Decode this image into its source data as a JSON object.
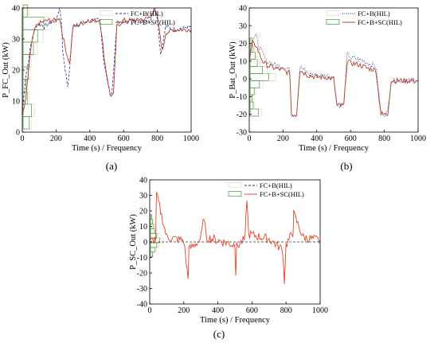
{
  "colors": {
    "fcb": "#1f2f9a",
    "sc": "#b5402a",
    "sc_c": "#e8442a",
    "hist_fill": "#c8e6c0",
    "hist_edge": "#3f9a3a",
    "hist_tan": "#e8d6b8",
    "axis": "#000000"
  },
  "chart_data": [
    {
      "type": "line",
      "panel_label": "(a)",
      "xlabel": "Time (s) / Frequency",
      "ylabel": "P_FC_Out (kW)",
      "xlim": [
        0,
        1000
      ],
      "ylim": [
        0,
        40
      ],
      "xticks": [
        0,
        200,
        400,
        600,
        800,
        1000
      ],
      "yticks": [
        0,
        10,
        20,
        30,
        40
      ],
      "legend": [
        "FC+B(HIL)",
        "FC+B+SC(HIL)"
      ],
      "legend_position": "top-right",
      "series": [
        {
          "name": "FC+B(HIL)",
          "style": "dashed",
          "x": [
            0,
            20,
            40,
            50,
            60,
            80,
            100,
            130,
            160,
            200,
            220,
            230,
            240,
            260,
            270,
            300,
            400,
            460,
            480,
            520,
            530,
            560,
            650,
            760,
            780,
            800,
            820,
            850,
            900,
            1000
          ],
          "y": [
            6,
            18,
            24,
            28,
            30,
            34,
            35,
            34,
            35,
            36,
            40,
            37,
            26,
            18,
            14,
            34,
            36,
            36,
            24,
            12,
            12,
            35,
            36,
            36,
            40,
            37,
            25,
            34,
            33,
            34
          ]
        },
        {
          "name": "FC+B+SC(HIL)",
          "style": "solid",
          "x": [
            0,
            20,
            40,
            60,
            80,
            100,
            150,
            200,
            220,
            240,
            260,
            280,
            300,
            400,
            460,
            490,
            520,
            540,
            560,
            600,
            700,
            760,
            780,
            800,
            830,
            850,
            900,
            1000
          ],
          "y": [
            5,
            10,
            22,
            30,
            34,
            35,
            36,
            36,
            37,
            31,
            26,
            22,
            34,
            36,
            36,
            22,
            12,
            12,
            34,
            36,
            36,
            37,
            40,
            37,
            26,
            32,
            33,
            33
          ]
        }
      ],
      "histogram": {
        "bins": [
          3,
          7,
          11,
          15,
          19,
          23,
          27,
          31,
          35,
          39
        ],
        "lengths": [
          6,
          8,
          4,
          3,
          5,
          6,
          10,
          14,
          20,
          4
        ]
      }
    },
    {
      "type": "line",
      "panel_label": "(b)",
      "xlabel": "Time (s) / Frequency",
      "ylabel": "P_Bat_Out (kW)",
      "xlim": [
        0,
        1000
      ],
      "ylim": [
        -30,
        40
      ],
      "xticks": [
        0,
        200,
        400,
        600,
        800,
        1000
      ],
      "yticks": [
        -30,
        -20,
        -10,
        0,
        10,
        20,
        30,
        40
      ],
      "legend": [
        "FC+B(HIL)",
        "FC+B+SC(HIL)"
      ],
      "legend_position": "top-right",
      "series": [
        {
          "name": "FC+B(HIL)",
          "style": "dotted",
          "x": [
            0,
            20,
            40,
            60,
            80,
            100,
            150,
            200,
            240,
            250,
            280,
            300,
            350,
            400,
            450,
            500,
            520,
            560,
            580,
            600,
            650,
            700,
            750,
            780,
            800,
            820,
            840,
            900,
            1000
          ],
          "y": [
            10,
            22,
            24,
            18,
            14,
            10,
            8,
            7,
            5,
            -20,
            -20,
            7,
            3,
            2,
            2,
            1,
            -15,
            -15,
            14,
            12,
            11,
            9,
            7,
            -19,
            -20,
            -19,
            -1,
            -1,
            -1
          ]
        },
        {
          "name": "FC+B+SC(HIL)",
          "style": "solid",
          "x": [
            0,
            20,
            40,
            60,
            80,
            100,
            150,
            200,
            240,
            250,
            280,
            300,
            350,
            400,
            450,
            500,
            520,
            560,
            580,
            600,
            650,
            700,
            750,
            780,
            800,
            820,
            840,
            900,
            1000
          ],
          "y": [
            12,
            20,
            19,
            14,
            10,
            8,
            6,
            5,
            3,
            -20,
            -20,
            5,
            2,
            1,
            1,
            0,
            -15,
            -15,
            10,
            9,
            8,
            6,
            5,
            -20,
            -20,
            -20,
            -1,
            -1,
            -1
          ]
        }
      ],
      "histogram": {
        "bins": [
          -19,
          -15,
          -11,
          -7,
          -3,
          1,
          5,
          9,
          13,
          17,
          21
        ],
        "lengths": [
          8,
          3,
          2,
          4,
          9,
          18,
          12,
          7,
          5,
          3,
          2
        ]
      }
    },
    {
      "type": "line",
      "panel_label": "(c)",
      "xlabel": "Time (s) / Frequency",
      "ylabel": "P_SC_Out (kW)",
      "xlim": [
        0,
        1000
      ],
      "ylim": [
        -40,
        40
      ],
      "xticks": [
        0,
        200,
        400,
        600,
        800,
        1000
      ],
      "yticks": [
        -40,
        -30,
        -20,
        -10,
        0,
        10,
        20,
        30,
        40
      ],
      "legend": [
        "FC+B(HIL)",
        "FC+B+SC(HIL)"
      ],
      "legend_position": "top-right",
      "series": [
        {
          "name": "FC+B(HIL)",
          "style": "dashed",
          "x": [
            0,
            1000
          ],
          "y": [
            0,
            0
          ]
        },
        {
          "name": "FC+B+SC(HIL)",
          "style": "solid",
          "x": [
            0,
            35,
            40,
            100,
            200,
            225,
            230,
            300,
            320,
            330,
            400,
            500,
            505,
            510,
            560,
            570,
            580,
            700,
            780,
            790,
            800,
            840,
            845,
            900,
            1000
          ],
          "y": [
            0,
            2,
            31,
            3,
            1,
            -24,
            -5,
            2,
            17,
            3,
            1,
            -2,
            -20,
            -3,
            2,
            29,
            5,
            2,
            -5,
            -25,
            -2,
            6,
            18,
            3,
            1
          ]
        }
      ],
      "histogram": {
        "bins": [
          -8,
          -5,
          -2,
          1,
          4,
          7,
          10,
          13,
          16
        ],
        "lengths": [
          2,
          4,
          6,
          9,
          6,
          4,
          3,
          2,
          1
        ]
      }
    }
  ]
}
